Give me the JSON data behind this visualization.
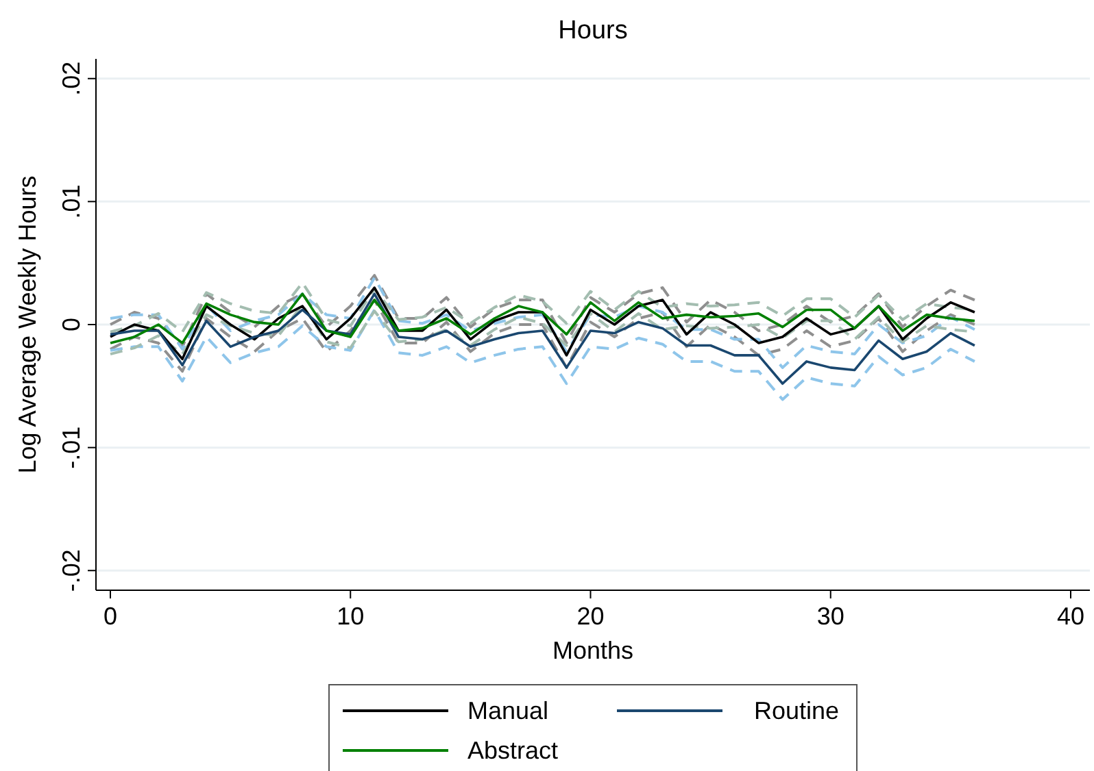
{
  "chart_data": {
    "type": "line",
    "title": "Hours",
    "xlabel": "Months",
    "ylabel": "Log Average Weekly Hours",
    "x": [
      0,
      1,
      2,
      3,
      4,
      5,
      6,
      7,
      8,
      9,
      10,
      11,
      12,
      13,
      14,
      15,
      16,
      17,
      18,
      19,
      20,
      21,
      22,
      23,
      24,
      25,
      26,
      27,
      28,
      29,
      30,
      31,
      32,
      33,
      34,
      35,
      36
    ],
    "xlim": [
      -0.6,
      40.8
    ],
    "xticks": [
      0,
      10,
      20,
      30,
      40
    ],
    "ylim": [
      -0.0216,
      0.0216
    ],
    "yticks": [
      {
        "value": -0.02,
        "label": "-.02"
      },
      {
        "value": -0.01,
        "label": "-.01"
      },
      0,
      {
        "value": 0.01,
        "label": ".01"
      },
      {
        "value": 0.02,
        "label": ".02"
      }
    ],
    "grid": "y",
    "legend": "bottom",
    "line_style": "solid",
    "marker": "none",
    "series": [
      {
        "color": "#8f8f8f",
        "line_style": "dashed",
        "values": [
          -0.002,
          -0.001,
          -0.0015,
          -0.0038,
          0.0005,
          -0.001,
          -0.0022,
          -0.0005,
          0.0005,
          -0.0022,
          -0.0005,
          0.002,
          -0.0015,
          -0.0015,
          0.0002,
          -0.0022,
          -0.0007,
          0,
          0,
          -0.0035,
          0.0002,
          -0.001,
          0.0005,
          0.001,
          -0.0018,
          0,
          -0.001,
          -0.0025,
          -0.002,
          -0.0005,
          -0.0018,
          -0.0013,
          0.0005,
          -0.0022,
          -0.0005,
          0.0008,
          0
        ]
      },
      {
        "color": "#8f8f8f",
        "line_style": "dashed",
        "values": [
          0,
          0.001,
          0.0005,
          -0.0018,
          0.0025,
          0.001,
          -0.0002,
          0.0015,
          0.0025,
          -0.0002,
          0.0015,
          0.004,
          0.0005,
          0.0005,
          0.0022,
          -0.0002,
          0.0013,
          0.002,
          0.002,
          -0.0015,
          0.0022,
          0.001,
          0.0025,
          0.003,
          0.0002,
          0.002,
          0.001,
          -0.0005,
          0,
          0.0015,
          0.0002,
          0.0007,
          0.0025,
          -0.0002,
          0.0015,
          0.0028,
          0.002
        ]
      },
      {
        "color": "#8ec5ea",
        "line_style": "dashed",
        "values": [
          -0.0021,
          -0.0018,
          -0.0018,
          -0.0046,
          -0.001,
          -0.0031,
          -0.0023,
          -0.0018,
          -0.0001,
          -0.0018,
          -0.0021,
          0.0012,
          -0.0023,
          -0.0025,
          -0.0018,
          -0.0031,
          -0.0025,
          -0.002,
          -0.0018,
          -0.0048,
          -0.0018,
          -0.002,
          -0.0011,
          -0.0016,
          -0.003,
          -0.003,
          -0.0038,
          -0.0038,
          -0.0061,
          -0.0043,
          -0.0048,
          -0.005,
          -0.0026,
          -0.0041,
          -0.0035,
          -0.002,
          -0.003
        ]
      },
      {
        "color": "#8ec5ea",
        "line_style": "dashed",
        "values": [
          0.0005,
          0.0008,
          0.0008,
          -0.002,
          0.0016,
          -0.0005,
          0.0003,
          0.0008,
          0.0025,
          0.0008,
          0.0005,
          0.0038,
          0.0003,
          0.0001,
          0.0008,
          -0.0005,
          0.0001,
          0.0006,
          0.0008,
          -0.0022,
          0.0008,
          0.0006,
          0.0015,
          0.001,
          -0.0004,
          -0.0004,
          -0.0012,
          -0.0012,
          -0.0035,
          -0.0017,
          -0.0022,
          -0.0024,
          0,
          -0.0015,
          -0.0009,
          0.0006,
          -0.0004
        ]
      },
      {
        "color": "#a3bdb0",
        "line_style": "dashed",
        "values": [
          -0.0024,
          -0.0019,
          -0.0009,
          -0.0024,
          0.0008,
          -0.0001,
          -0.0007,
          -0.0009,
          0.0016,
          -0.0014,
          -0.0019,
          0.0011,
          -0.0014,
          -0.0012,
          -0.0004,
          -0.0017,
          -0.0004,
          0.0006,
          0.0001,
          -0.0017,
          0.0009,
          -0.0006,
          0.0009,
          -0.0004,
          -0.0001,
          -0.0003,
          -0.0002,
          0,
          -0.0011,
          0.0003,
          0.0003,
          -0.0012,
          0.0006,
          -0.0014,
          -0.0001,
          -0.0004,
          -0.0006
        ]
      },
      {
        "color": "#a3bdb0",
        "line_style": "dashed",
        "values": [
          -0.0006,
          -0.0001,
          0.0009,
          -0.0006,
          0.0026,
          0.0017,
          0.0011,
          0.0009,
          0.0034,
          0.0004,
          -0.0001,
          0.0029,
          0.0004,
          0.0006,
          0.0014,
          0.0001,
          0.0014,
          0.0024,
          0.0019,
          0.0001,
          0.0027,
          0.0012,
          0.0027,
          0.0014,
          0.0017,
          0.0015,
          0.0016,
          0.0018,
          0.0007,
          0.0021,
          0.0021,
          0.0006,
          0.0024,
          0.0004,
          0.0017,
          0.0014,
          0.0012
        ]
      },
      {
        "name": "Manual",
        "color": "#000000",
        "values": [
          -0.001,
          0,
          -0.0005,
          -0.0028,
          0.0015,
          0,
          -0.0012,
          0.0005,
          0.0015,
          -0.0012,
          0.0005,
          0.003,
          -0.0005,
          -0.0005,
          0.0012,
          -0.0012,
          0.0003,
          0.001,
          0.001,
          -0.0025,
          0.0012,
          0,
          0.0015,
          0.002,
          -0.0008,
          0.001,
          0,
          -0.0015,
          -0.001,
          0.0005,
          -0.0008,
          -0.0003,
          0.0015,
          -0.0012,
          0.0005,
          0.0018,
          0.001
        ]
      },
      {
        "name": "Routine",
        "color": "#1a476f",
        "values": [
          -0.0008,
          -0.0005,
          -0.0005,
          -0.0033,
          0.0003,
          -0.0018,
          -0.001,
          -0.0005,
          0.0012,
          -0.0005,
          -0.0008,
          0.0025,
          -0.001,
          -0.0012,
          -0.0005,
          -0.0018,
          -0.0012,
          -0.0007,
          -0.0005,
          -0.0035,
          -0.0005,
          -0.0007,
          0.0002,
          -0.0003,
          -0.0017,
          -0.0017,
          -0.0025,
          -0.0025,
          -0.0048,
          -0.003,
          -0.0035,
          -0.0037,
          -0.0013,
          -0.0028,
          -0.0022,
          -0.0007,
          -0.0017
        ]
      },
      {
        "name": "Abstract",
        "color": "#008000",
        "values": [
          -0.0015,
          -0.001,
          0,
          -0.0015,
          0.0017,
          0.0008,
          0.0002,
          0,
          0.0025,
          -0.0005,
          -0.001,
          0.002,
          -0.0005,
          -0.0003,
          0.0005,
          -0.0008,
          0.0005,
          0.0015,
          0.001,
          -0.0008,
          0.0018,
          0.0003,
          0.0018,
          0.0005,
          0.0008,
          0.0006,
          0.0007,
          0.0009,
          -0.0002,
          0.0012,
          0.0012,
          -0.0003,
          0.0015,
          -0.0005,
          0.0008,
          0.0005,
          0.0003
        ]
      }
    ]
  }
}
